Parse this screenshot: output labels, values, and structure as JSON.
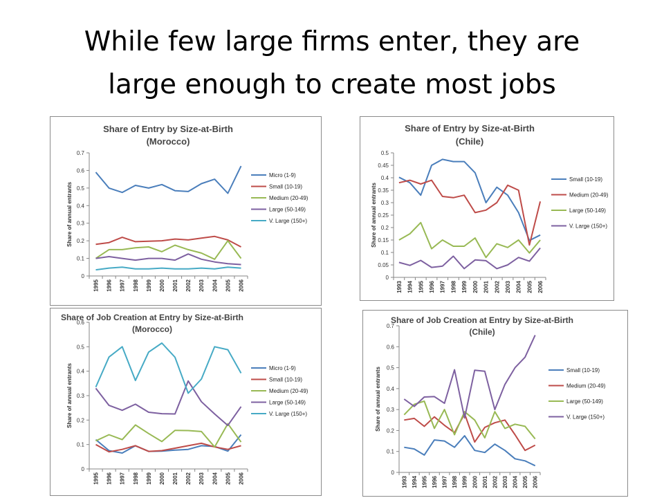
{
  "page": {
    "title_line1": "While few large firms enter, they are",
    "title_line2": "large enough to create most jobs"
  },
  "chart_data": [
    {
      "id": "entry-morocco",
      "type": "line",
      "title_lines": [
        "Share of Entry by Size-at-Birth",
        "(Morocco)"
      ],
      "ylabel": "Share of annual entrants",
      "xlabel": "",
      "ylim": [
        0,
        0.7
      ],
      "yticks": [
        "0",
        "0.1",
        "0.2",
        "0.3",
        "0.4",
        "0.5",
        "0.6",
        "0.7"
      ],
      "grid": false,
      "legend_position": "right",
      "categories": [
        "1995",
        "1996",
        "1997",
        "1998",
        "1999",
        "2000",
        "2001",
        "2002",
        "2003",
        "2004",
        "2005",
        "2006"
      ],
      "series": [
        {
          "name": "Micro (1-9)",
          "color": "#4a7ebb",
          "values": [
            0.59,
            0.5,
            0.475,
            0.515,
            0.5,
            0.52,
            0.485,
            0.48,
            0.525,
            0.55,
            0.47,
            0.625
          ]
        },
        {
          "name": "Small (10-19)",
          "color": "#be4b48",
          "values": [
            0.18,
            0.19,
            0.22,
            0.195,
            0.198,
            0.2,
            0.21,
            0.205,
            0.215,
            0.225,
            0.205,
            0.165
          ]
        },
        {
          "name": "Medium (20-49)",
          "color": "#98b954",
          "values": [
            0.1,
            0.15,
            0.15,
            0.16,
            0.165,
            0.138,
            0.175,
            0.15,
            0.13,
            0.095,
            0.2,
            0.1
          ]
        },
        {
          "name": "Large (50-149)",
          "color": "#7d60a0",
          "values": [
            0.1,
            0.11,
            0.1,
            0.09,
            0.1,
            0.1,
            0.09,
            0.125,
            0.095,
            0.08,
            0.07,
            0.065
          ]
        },
        {
          "name": "V. Large (150+)",
          "color": "#46aac5",
          "values": [
            0.035,
            0.045,
            0.05,
            0.04,
            0.04,
            0.045,
            0.04,
            0.04,
            0.045,
            0.04,
            0.05,
            0.045
          ]
        }
      ]
    },
    {
      "id": "entry-chile",
      "type": "line",
      "title_lines": [
        "Share of Entry by Size-at-Birth",
        "(Chile)"
      ],
      "ylabel": "Share of annual entrants",
      "xlabel": "",
      "ylim": [
        0,
        0.5
      ],
      "yticks": [
        "0",
        "0.05",
        "0.1",
        "0.15",
        "0.2",
        "0.25",
        "0.3",
        "0.35",
        "0.4",
        "0.45",
        "0.5"
      ],
      "grid": false,
      "legend_position": "right",
      "categories": [
        "1993",
        "1994",
        "1995",
        "1996",
        "1997",
        "1998",
        "1999",
        "2000",
        "2001",
        "2002",
        "2003",
        "2004",
        "2005",
        "2006"
      ],
      "series": [
        {
          "name": "Small (10-19)",
          "color": "#4a7ebb",
          "values": [
            0.402,
            0.38,
            0.33,
            0.45,
            0.474,
            0.465,
            0.465,
            0.42,
            0.3,
            0.362,
            0.33,
            0.26,
            0.148,
            0.17
          ]
        },
        {
          "name": "Medium (20-49)",
          "color": "#be4b48",
          "values": [
            0.38,
            0.39,
            0.375,
            0.39,
            0.325,
            0.32,
            0.33,
            0.26,
            0.27,
            0.3,
            0.37,
            0.35,
            0.13,
            0.305
          ]
        },
        {
          "name": "Large (50-149)",
          "color": "#98b954",
          "values": [
            0.15,
            0.175,
            0.22,
            0.115,
            0.15,
            0.125,
            0.125,
            0.158,
            0.08,
            0.135,
            0.12,
            0.15,
            0.098,
            0.15
          ]
        },
        {
          "name": "V. Large (150+)",
          "color": "#7d60a0",
          "values": [
            0.06,
            0.048,
            0.068,
            0.04,
            0.045,
            0.085,
            0.035,
            0.07,
            0.067,
            0.035,
            0.05,
            0.08,
            0.065,
            0.118
          ]
        }
      ]
    },
    {
      "id": "jobs-morocco",
      "type": "line",
      "title_lines": [
        "Share of Job Creation at Entry by Size-at-Birth",
        "(Morocco)"
      ],
      "ylabel": "Share of annual entrants",
      "xlabel": "",
      "ylim": [
        0,
        0.6
      ],
      "yticks": [
        "0",
        "0.1",
        "0.2",
        "0.3",
        "0.4",
        "0.5",
        "0.6"
      ],
      "grid": false,
      "legend_position": "right",
      "categories": [
        "1995",
        "1996",
        "1997",
        "1998",
        "1999",
        "2000",
        "2001",
        "2002",
        "2003",
        "2004",
        "2005",
        "2006"
      ],
      "series": [
        {
          "name": "Micro (1-9)",
          "color": "#4a7ebb",
          "values": [
            0.12,
            0.075,
            0.065,
            0.095,
            0.072,
            0.073,
            0.077,
            0.08,
            0.095,
            0.092,
            0.073,
            0.14
          ]
        },
        {
          "name": "Small (10-19)",
          "color": "#be4b48",
          "values": [
            0.1,
            0.07,
            0.08,
            0.095,
            0.072,
            0.075,
            0.085,
            0.095,
            0.105,
            0.09,
            0.08,
            0.095
          ]
        },
        {
          "name": "Medium (20-49)",
          "color": "#98b954",
          "values": [
            0.115,
            0.14,
            0.12,
            0.18,
            0.145,
            0.112,
            0.158,
            0.157,
            0.153,
            0.09,
            0.185,
            0.11
          ]
        },
        {
          "name": "Large (50-149)",
          "color": "#7d60a0",
          "values": [
            0.33,
            0.26,
            0.24,
            0.265,
            0.232,
            0.226,
            0.225,
            0.36,
            0.275,
            0.225,
            0.178,
            0.255
          ]
        },
        {
          "name": "V. Large (150+)",
          "color": "#46aac5",
          "values": [
            0.335,
            0.458,
            0.5,
            0.362,
            0.478,
            0.515,
            0.457,
            0.31,
            0.368,
            0.5,
            0.488,
            0.392
          ]
        }
      ]
    },
    {
      "id": "jobs-chile",
      "type": "line",
      "title_lines": [
        "Share of Job Creation at Entry by Size-at-Birth",
        "(Chile)"
      ],
      "ylabel": "Share of annual entrants",
      "xlabel": "",
      "ylim": [
        0,
        0.7
      ],
      "yticks": [
        "0",
        "0.1",
        "0.2",
        "0.3",
        "0.4",
        "0.5",
        "0.6",
        "0.7"
      ],
      "grid": false,
      "legend_position": "right",
      "categories": [
        "1993",
        "1994",
        "1995",
        "1996",
        "1997",
        "1998",
        "1999",
        "2000",
        "2001",
        "2002",
        "2003",
        "2004",
        "2005",
        "2006"
      ],
      "series": [
        {
          "name": "Small (10-19)",
          "color": "#4a7ebb",
          "values": [
            0.12,
            0.112,
            0.083,
            0.155,
            0.15,
            0.12,
            0.175,
            0.105,
            0.095,
            0.135,
            0.105,
            0.065,
            0.055,
            0.032
          ]
        },
        {
          "name": "Medium (20-49)",
          "color": "#be4b48",
          "values": [
            0.25,
            0.258,
            0.22,
            0.265,
            0.225,
            0.19,
            0.28,
            0.145,
            0.215,
            0.237,
            0.25,
            0.18,
            0.105,
            0.13
          ]
        },
        {
          "name": "Large (50-149)",
          "color": "#98b954",
          "values": [
            0.275,
            0.325,
            0.34,
            0.21,
            0.3,
            0.18,
            0.29,
            0.25,
            0.165,
            0.29,
            0.21,
            0.23,
            0.22,
            0.16
          ]
        },
        {
          "name": "V. Large (150+)",
          "color": "#7d60a0",
          "values": [
            0.35,
            0.315,
            0.36,
            0.362,
            0.33,
            0.49,
            0.26,
            0.488,
            0.483,
            0.3,
            0.42,
            0.5,
            0.55,
            0.655
          ]
        }
      ]
    }
  ]
}
